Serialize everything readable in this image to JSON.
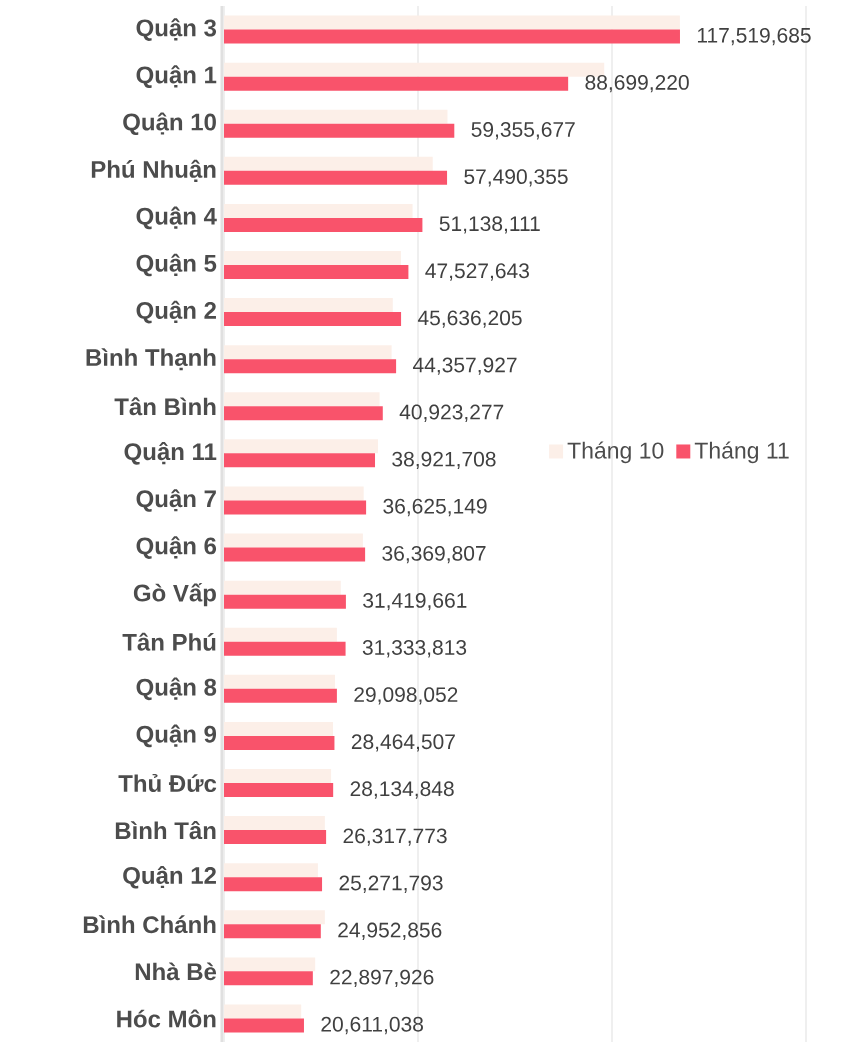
{
  "chart_data": {
    "type": "bar",
    "orientation": "horizontal",
    "categories": [
      "Quận 3",
      "Quận 1",
      "Quận 10",
      "Phú Nhuận",
      "Quận 4",
      "Quận 5",
      "Quận 2",
      "Bình Thạnh",
      "Tân Bình",
      "Quận 11",
      "Quận 7",
      "Quận 6",
      "Gò Vấp",
      "Tân Phú",
      "Quận 8",
      "Quận 9",
      "Thủ Đức",
      "Bình Tân",
      "Quận 12",
      "Bình Chánh",
      "Nhà Bè",
      "Hóc Môn"
    ],
    "series": [
      {
        "name": "Tháng 10",
        "color": "#fcefe8",
        "values": [
          117500000,
          98000000,
          57600000,
          53800000,
          48600000,
          45600000,
          43500000,
          43200000,
          40100000,
          39700000,
          36000000,
          35800000,
          30100000,
          29100000,
          28600000,
          28100000,
          27600000,
          26000000,
          24200000,
          26000000,
          23500000,
          19900000
        ]
      },
      {
        "name": "Tháng 11",
        "color": "#f9536b",
        "values": [
          117519685,
          88699220,
          59355677,
          57490355,
          51138111,
          47527643,
          45636205,
          44357927,
          40923277,
          38921708,
          36625149,
          36369807,
          31419661,
          31333813,
          29098052,
          28464507,
          28134848,
          26317773,
          25271793,
          24952856,
          22897926,
          20611038
        ],
        "value_labels": [
          "117,519,685",
          "88,699,220",
          "59,355,677",
          "57,490,355",
          "51,138,111",
          "47,527,643",
          "45,636,205",
          "44,357,927",
          "40,923,277",
          "38,921,708",
          "36,625,149",
          "36,369,807",
          "31,419,661",
          "31,333,813",
          "29,098,052",
          "28,464,507",
          "28,134,848",
          "26,317,773",
          "25,271,793",
          "24,952,856",
          "22,897,926",
          "20,611,038"
        ]
      }
    ],
    "xlim": [
      0,
      150000000
    ],
    "xticks": [
      {
        "value": 0,
        "label": null
      },
      {
        "value": 50000000,
        "label": null
      },
      {
        "value": 100000000,
        "label": null
      },
      {
        "value": 150000000,
        "label": null
      }
    ],
    "grid": "x",
    "legend": "right",
    "tick_labels": "y"
  }
}
